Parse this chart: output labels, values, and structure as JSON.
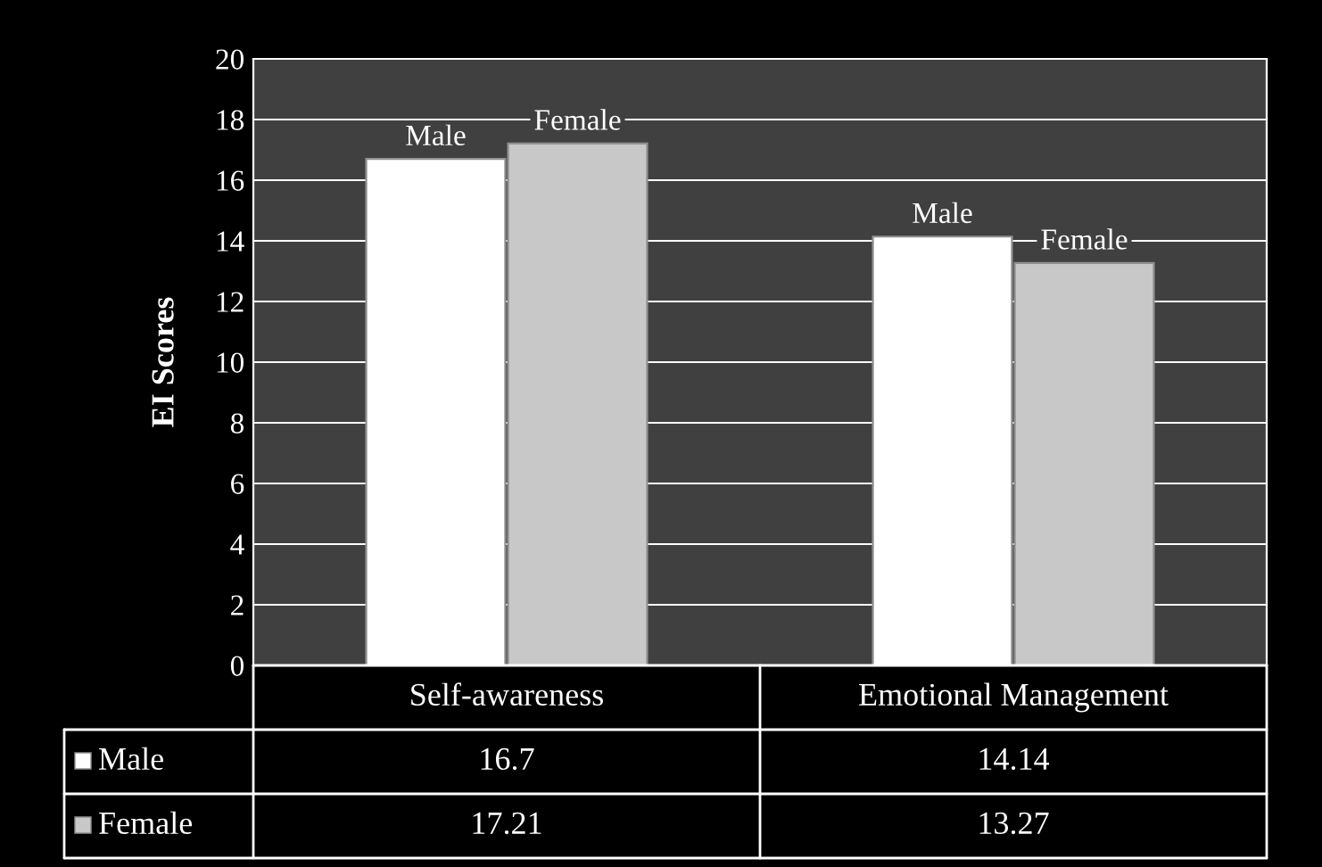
{
  "chart_data": {
    "type": "bar",
    "ylabel": "EI Scores",
    "categories": [
      "Self-awareness",
      "Emotional Management"
    ],
    "series": [
      {
        "name": "Male",
        "color": "#ffffff",
        "values": [
          16.7,
          14.14
        ]
      },
      {
        "name": "Female",
        "color": "#c8c8c8",
        "values": [
          17.21,
          13.27
        ]
      }
    ],
    "ylim": [
      0,
      20
    ],
    "yticks": [
      0,
      2,
      4,
      6,
      8,
      10,
      12,
      14,
      16,
      18,
      20
    ],
    "grid": "y",
    "data_labels": true,
    "legend": "bottom left"
  }
}
